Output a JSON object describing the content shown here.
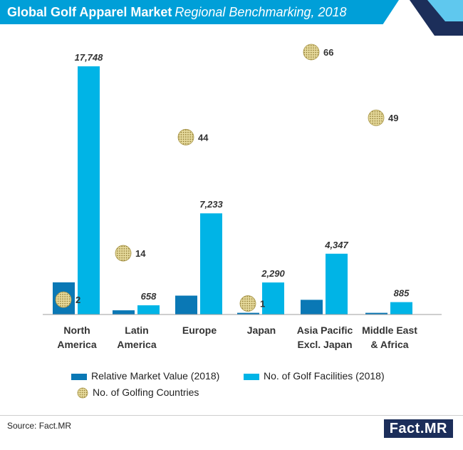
{
  "header": {
    "title_bold": "Global Golf Apparel Market",
    "title_italic": "Regional Benchmarking, 2018"
  },
  "colors": {
    "header_bg": "#009fd8",
    "relative_market_value": "#0a78b5",
    "golf_facilities": "#00b4e6",
    "golfing_countries": "#c8b56a"
  },
  "chart_data": {
    "type": "bar",
    "title": "Global Golf Apparel Market Regional Benchmarking, 2018",
    "categories": [
      [
        "North",
        "America"
      ],
      [
        "Latin",
        "America"
      ],
      [
        "Europe"
      ],
      [
        "Japan"
      ],
      [
        "Asia Pacific",
        "Excl. Japan"
      ],
      [
        "Middle East",
        "& Africa"
      ]
    ],
    "series": [
      {
        "name": "Relative Market Value (2018)",
        "type": "bar",
        "values": [
          2300,
          300,
          1350,
          120,
          1050,
          120
        ]
      },
      {
        "name": "No. of Golf Facilities (2018)",
        "type": "bar",
        "values": [
          17748,
          658,
          7233,
          2290,
          4347,
          885
        ],
        "labels": [
          "17,748",
          "658",
          "7,233",
          "2,290",
          "4,347",
          "885"
        ]
      },
      {
        "name": "No. of Golfing Countries",
        "type": "bubble",
        "values": [
          2,
          14,
          44,
          1,
          66,
          49
        ],
        "labels": [
          "2",
          "14",
          "44",
          "1",
          "66",
          "49"
        ]
      }
    ],
    "ylim": [
      0,
      17748
    ],
    "bubble_ylim": [
      0,
      66
    ],
    "grid": false,
    "legend_position": "bottom"
  },
  "footer": {
    "source": "Source: Fact.MR",
    "logo_fact": "Fact",
    "logo_mr": ".MR"
  }
}
